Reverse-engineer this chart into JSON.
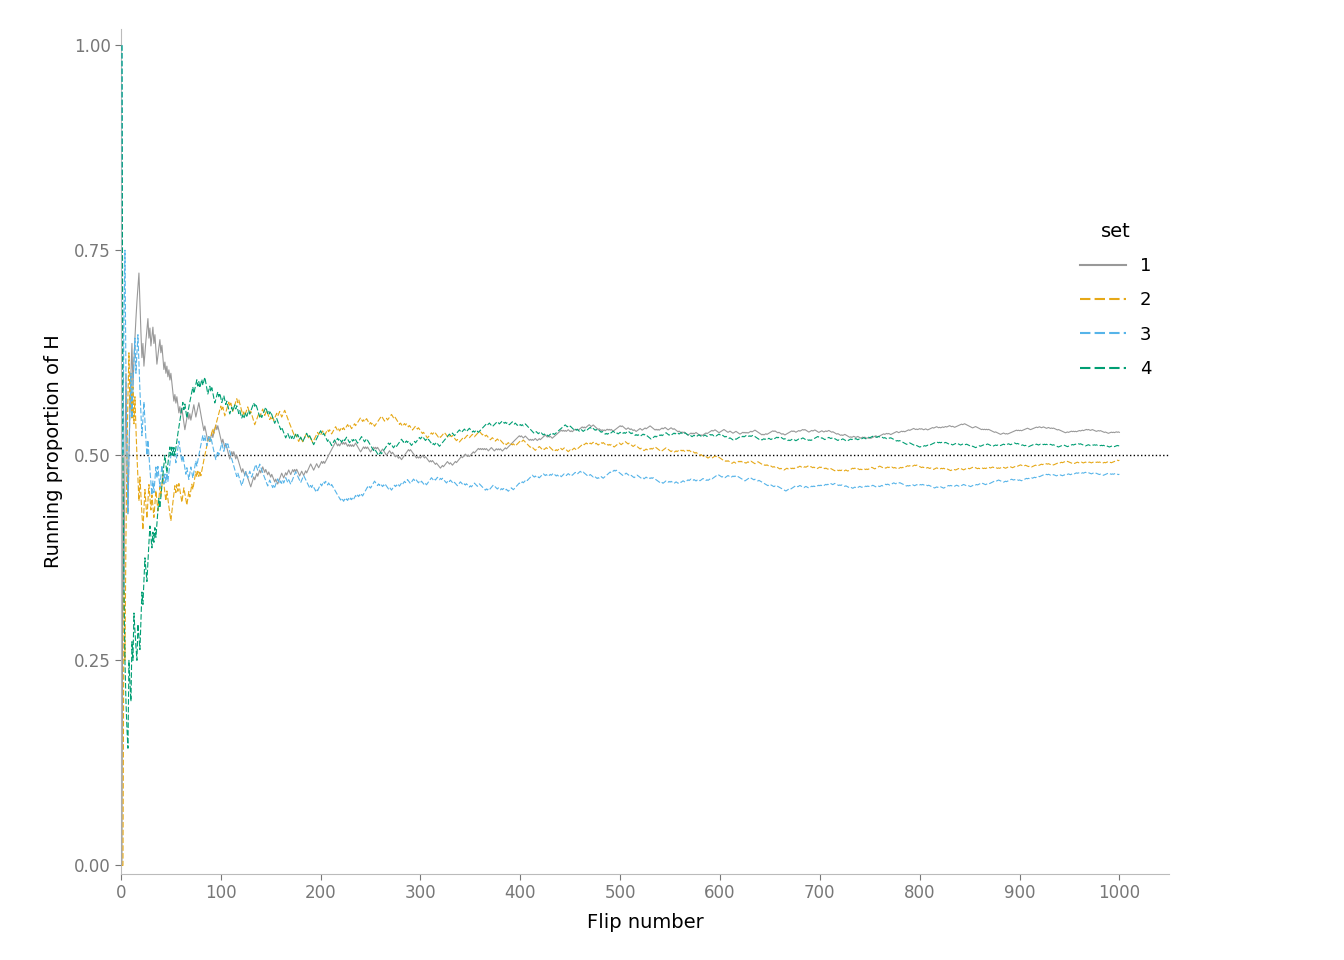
{
  "n_flips": 1000,
  "series_colors": [
    "#999999",
    "#E6A817",
    "#56B4E9",
    "#009E73"
  ],
  "series_linestyles": [
    "solid",
    "dashed",
    "dashed",
    "dashed"
  ],
  "series_labels": [
    "1",
    "2",
    "3",
    "4"
  ],
  "series_linewidths": [
    0.8,
    0.8,
    0.8,
    0.8
  ],
  "hline_y": 0.5,
  "hline_color": "#000000",
  "hline_linestyle": "dotted",
  "hline_linewidth": 1.0,
  "xlabel": "Flip number",
  "ylabel": "Running proportion of H",
  "xlim": [
    0,
    1050
  ],
  "ylim": [
    -0.01,
    1.02
  ],
  "xticks": [
    0,
    100,
    200,
    300,
    400,
    500,
    600,
    700,
    800,
    900,
    1000
  ],
  "yticks": [
    0.0,
    0.25,
    0.5,
    0.75,
    1.0
  ],
  "legend_title": "set",
  "background_color": "#ffffff",
  "axis_label_fontsize": 14,
  "tick_fontsize": 12,
  "legend_fontsize": 13,
  "legend_title_fontsize": 14
}
